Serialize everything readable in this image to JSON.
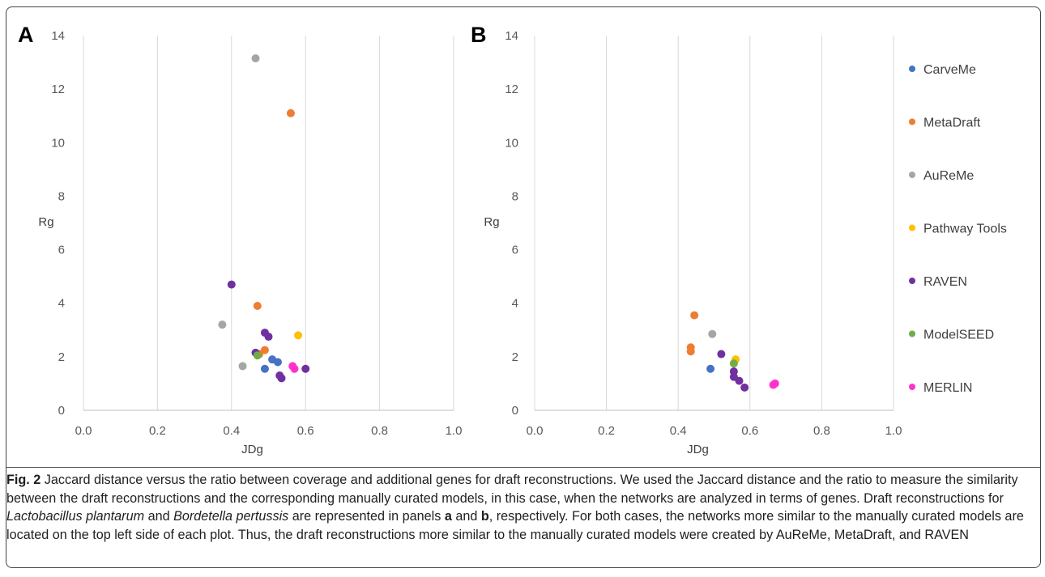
{
  "colors": {
    "CarveMe": "#4472C4",
    "MetaDraft": "#ED7D31",
    "AuReMe": "#A5A5A5",
    "Pathway Tools": "#FFC000",
    "RAVEN": "#7030A0",
    "ModelSEED": "#70AD47",
    "MERLIN": "#FF33CC"
  },
  "chart_data": [
    {
      "panel": "A",
      "type": "scatter",
      "xlabel": "JDg",
      "ylabel": "Rg",
      "xlim": [
        0,
        1.0
      ],
      "ylim": [
        0,
        14
      ],
      "xticks": [
        "0.0",
        "0.2",
        "0.4",
        "0.6",
        "0.8",
        "1.0"
      ],
      "yticks": [
        "0",
        "2",
        "4",
        "6",
        "8",
        "10",
        "12",
        "14"
      ],
      "grid": "vertical",
      "series": [
        {
          "name": "CarveMe",
          "points": [
            [
              0.49,
              1.55
            ],
            [
              0.51,
              1.9
            ],
            [
              0.525,
              1.8
            ]
          ]
        },
        {
          "name": "MetaDraft",
          "points": [
            [
              0.56,
              11.1
            ],
            [
              0.47,
              3.9
            ],
            [
              0.49,
              2.25
            ],
            [
              0.475,
              2.1
            ]
          ]
        },
        {
          "name": "AuReMe",
          "points": [
            [
              0.465,
              13.15
            ],
            [
              0.375,
              3.2
            ],
            [
              0.43,
              1.65
            ]
          ]
        },
        {
          "name": "Pathway Tools",
          "points": [
            [
              0.58,
              2.8
            ]
          ]
        },
        {
          "name": "RAVEN",
          "points": [
            [
              0.4,
              4.7
            ],
            [
              0.49,
              2.9
            ],
            [
              0.5,
              2.75
            ],
            [
              0.465,
              2.15
            ],
            [
              0.53,
              1.3
            ],
            [
              0.535,
              1.2
            ],
            [
              0.6,
              1.55
            ]
          ]
        },
        {
          "name": "ModelSEED",
          "points": [
            [
              0.47,
              2.05
            ]
          ]
        },
        {
          "name": "MERLIN",
          "points": [
            [
              0.565,
              1.65
            ],
            [
              0.57,
              1.55
            ]
          ]
        }
      ]
    },
    {
      "panel": "B",
      "type": "scatter",
      "xlabel": "JDg",
      "ylabel": "Rg",
      "xlim": [
        0,
        1.0
      ],
      "ylim": [
        0,
        14
      ],
      "xticks": [
        "0.0",
        "0.2",
        "0.4",
        "0.6",
        "0.8",
        "1.0"
      ],
      "yticks": [
        "0",
        "2",
        "4",
        "6",
        "8",
        "10",
        "12",
        "14"
      ],
      "grid": "vertical",
      "series": [
        {
          "name": "CarveMe",
          "points": [
            [
              0.49,
              1.55
            ]
          ]
        },
        {
          "name": "MetaDraft",
          "points": [
            [
              0.445,
              3.55
            ],
            [
              0.435,
              2.35
            ],
            [
              0.435,
              2.2
            ]
          ]
        },
        {
          "name": "AuReMe",
          "points": [
            [
              0.495,
              2.85
            ]
          ]
        },
        {
          "name": "Pathway Tools",
          "points": [
            [
              0.56,
              1.9
            ]
          ]
        },
        {
          "name": "RAVEN",
          "points": [
            [
              0.52,
              2.1
            ],
            [
              0.555,
              1.45
            ],
            [
              0.555,
              1.25
            ],
            [
              0.57,
              1.1
            ],
            [
              0.585,
              0.85
            ]
          ]
        },
        {
          "name": "ModelSEED",
          "points": [
            [
              0.555,
              1.75
            ]
          ]
        },
        {
          "name": "MERLIN",
          "points": [
            [
              0.665,
              0.95
            ],
            [
              0.67,
              1.0
            ]
          ]
        }
      ]
    }
  ],
  "legend": {
    "placement": "right",
    "items": [
      "CarveMe",
      "MetaDraft",
      "AuReMe",
      "Pathway Tools",
      "RAVEN",
      "ModelSEED",
      "MERLIN"
    ]
  },
  "caption": {
    "fig_label": "Fig. 2",
    "t1": " Jaccard distance versus the ratio between coverage and additional genes for draft reconstructions. We used the Jaccard distance and the ratio to measure the similarity between the draft reconstructions and the corresponding manually curated models, in this case, when the networks are analyzed in terms of genes. Draft reconstructions for ",
    "species1": "Lactobacillus plantarum",
    "t2": " and ",
    "species2": "Bordetella pertussis",
    "t3": " are represented in panels ",
    "panel_a": "a",
    "t4": " and ",
    "panel_b": "b",
    "t5": ", respectively. For both cases, the networks more similar to the manually curated models are located on the top left side of each plot. Thus, the draft reconstructions more similar to the manually curated models were created by AuReMe, MetaDraft, and RAVEN"
  }
}
